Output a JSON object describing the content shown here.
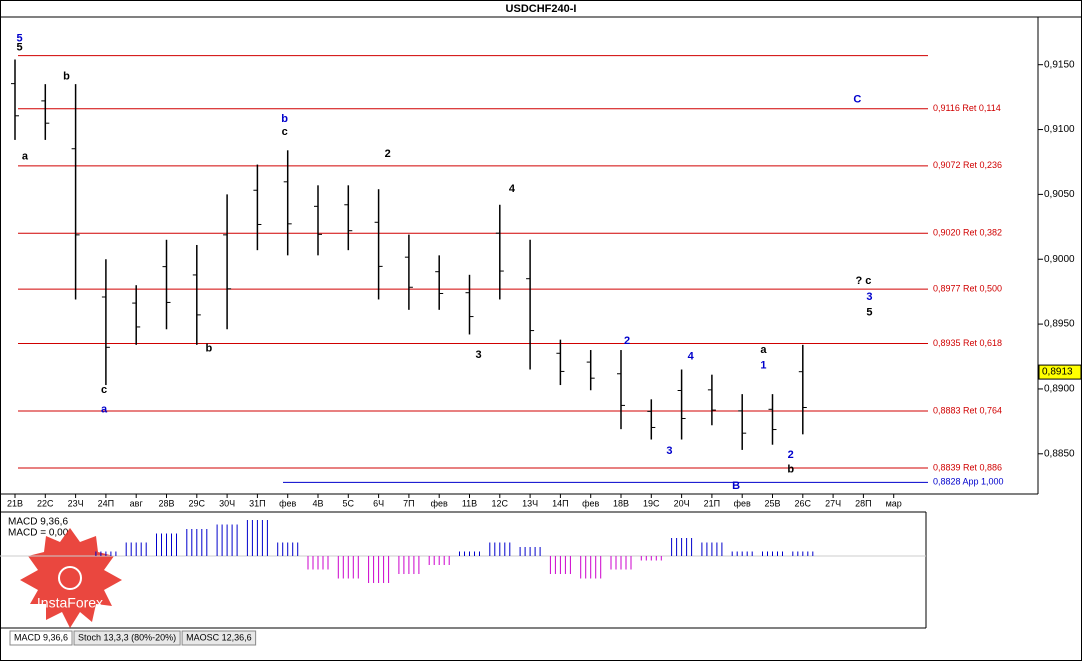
{
  "chart_data": {
    "type": "ohlc",
    "title": "USDCHF240-I",
    "categories": [
      "21В",
      "22С",
      "23Ч",
      "24П",
      "авг",
      "28В",
      "29С",
      "30Ч",
      "31П",
      "фев",
      "4В",
      "5С",
      "6Ч",
      "7П",
      "фев",
      "11В",
      "12С",
      "13Ч",
      "14П",
      "фев",
      "18В",
      "19С",
      "20Ч",
      "21П",
      "фев",
      "25В",
      "26С",
      "27Ч",
      "28П",
      "мар"
    ],
    "highs": [
      0.9154,
      0.9135,
      0.9135,
      0.9,
      0.898,
      0.9015,
      0.9011,
      0.905,
      0.9073,
      0.9084,
      0.9057,
      0.9057,
      0.9054,
      0.9019,
      0.9003,
      0.8988,
      0.9042,
      0.9015,
      0.8938,
      0.893,
      0.893,
      0.8892,
      0.8915,
      0.8911,
      0.8896,
      0.8896,
      0.8934,
      null,
      null,
      null
    ],
    "lows": [
      0.9092,
      0.9092,
      0.8969,
      0.8903,
      0.8934,
      0.8946,
      0.8934,
      0.8946,
      0.9007,
      0.9003,
      0.9003,
      0.9007,
      0.8969,
      0.8961,
      0.8961,
      0.8942,
      0.8969,
      0.8915,
      0.8903,
      0.8899,
      0.8869,
      0.8861,
      0.8861,
      0.8872,
      0.8853,
      0.8857,
      0.8865,
      null,
      null,
      null
    ],
    "color": "#000000",
    "ylim": [
      0.8819,
      0.9186
    ],
    "yticks": [
      {
        "value": 0.915,
        "label": "0,9150"
      },
      {
        "value": 0.91,
        "label": "0,9100"
      },
      {
        "value": 0.905,
        "label": "0,9050"
      },
      {
        "value": 0.9,
        "label": "0,9000"
      },
      {
        "value": 0.895,
        "label": "0,8950"
      },
      {
        "value": 0.89,
        "label": "0,8900"
      },
      {
        "value": 0.885,
        "label": "0,8850"
      }
    ],
    "current_price": {
      "value": 0.8913,
      "label": "0,8913"
    },
    "top_line": 0.9157,
    "levels": [
      {
        "value": 0.9116,
        "label": "0,9116 Ret 0,114",
        "color": "#d00000"
      },
      {
        "value": 0.9072,
        "label": "0,9072 Ret 0,236",
        "color": "#d00000"
      },
      {
        "value": 0.902,
        "label": "0,9020 Ret 0,382",
        "color": "#d00000"
      },
      {
        "value": 0.8977,
        "label": "0,8977 Ret 0,500",
        "color": "#d00000"
      },
      {
        "value": 0.8935,
        "label": "0,8935 Ret 0,618",
        "color": "#d00000"
      },
      {
        "value": 0.8883,
        "label": "0,8883 Ret 0,764",
        "color": "#d00000"
      },
      {
        "value": 0.8839,
        "label": "0,8839 Ret 0,886",
        "color": "#d00000"
      },
      {
        "value": 0.8828,
        "label": "0,8828 App 1,000",
        "color": "#0000cc"
      }
    ],
    "annotations": [
      {
        "text": "5",
        "x": 0.15,
        "y": 0.917,
        "color": "#0000cc"
      },
      {
        "text": "5",
        "x": 0.15,
        "y": 0.9163,
        "color": "#000000"
      },
      {
        "text": "b",
        "x": 1.7,
        "y": 0.9141,
        "color": "#000000"
      },
      {
        "text": "a",
        "x": 0.33,
        "y": 0.9079,
        "color": "#000000"
      },
      {
        "text": "c",
        "x": 2.94,
        "y": 0.8899,
        "color": "#000000"
      },
      {
        "text": "a",
        "x": 2.94,
        "y": 0.8884,
        "color": "#0000cc"
      },
      {
        "text": "b",
        "x": 6.4,
        "y": 0.8931,
        "color": "#000000"
      },
      {
        "text": "b",
        "x": 8.9,
        "y": 0.9108,
        "color": "#0000cc"
      },
      {
        "text": "c",
        "x": 8.9,
        "y": 0.9098,
        "color": "#000000"
      },
      {
        "text": "2",
        "x": 12.3,
        "y": 0.9081,
        "color": "#000000"
      },
      {
        "text": "4",
        "x": 16.4,
        "y": 0.9054,
        "color": "#000000"
      },
      {
        "text": "3",
        "x": 15.3,
        "y": 0.8926,
        "color": "#000000"
      },
      {
        "text": "2",
        "x": 20.2,
        "y": 0.8937,
        "color": "#0000cc"
      },
      {
        "text": "4",
        "x": 22.3,
        "y": 0.8925,
        "color": "#0000cc"
      },
      {
        "text": "3",
        "x": 21.6,
        "y": 0.8852,
        "color": "#0000cc"
      },
      {
        "text": "1",
        "x": 24.7,
        "y": 0.8918,
        "color": "#0000cc"
      },
      {
        "text": "a",
        "x": 24.7,
        "y": 0.893,
        "color": "#000000"
      },
      {
        "text": "2",
        "x": 25.6,
        "y": 0.8849,
        "color": "#0000cc"
      },
      {
        "text": "b",
        "x": 25.6,
        "y": 0.8838,
        "color": "#000000"
      },
      {
        "text": "B",
        "x": 23.8,
        "y": 0.8825,
        "color": "#0000cc"
      },
      {
        "text": "C",
        "x": 27.8,
        "y": 0.9123,
        "color": "#0000cc"
      },
      {
        "text": "? c",
        "x": 28.0,
        "y": 0.8983,
        "color": "#000000"
      },
      {
        "text": "3",
        "x": 28.2,
        "y": 0.8971,
        "color": "#0000cc"
      },
      {
        "text": "5",
        "x": 28.2,
        "y": 0.8959,
        "color": "#000000"
      }
    ],
    "indicator": {
      "name": "MACD 9,36,6",
      "value_label": "MACD = 0,00",
      "values": [
        0,
        0,
        0,
        0.1,
        0.3,
        0.5,
        0.6,
        0.7,
        0.8,
        0.3,
        -0.3,
        -0.5,
        -0.6,
        -0.4,
        -0.2,
        0.1,
        0.3,
        0.2,
        -0.4,
        -0.5,
        -0.3,
        -0.1,
        0.4,
        0.3,
        0.1,
        0.1,
        0.1,
        null,
        null,
        null
      ],
      "ylim": [
        -1,
        1
      ]
    },
    "tabs": [
      "MACD 9,36,6",
      "Stoch 13,3,3 (80%-20%)",
      "MAOSC 12,36,6"
    ],
    "logo": "InstaForex"
  }
}
